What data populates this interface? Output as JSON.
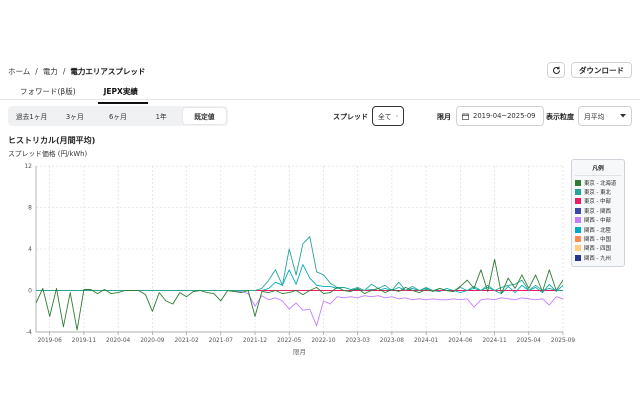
{
  "breadcrumb": {
    "items": [
      "ホーム",
      "電力"
    ],
    "current": "電力エリアスプレッド",
    "separator": "/"
  },
  "header": {
    "download_label": "ダウンロード",
    "refresh_icon": "refresh-icon"
  },
  "tabs": [
    {
      "label": "フォワード(β版)",
      "active": false
    },
    {
      "label": "JEPX実績",
      "active": true
    }
  ],
  "period": {
    "options": [
      "過去1ヶ月",
      "3ヶ月",
      "6ヶ月",
      "1年",
      "既定値"
    ],
    "selected": "既定値"
  },
  "filters": {
    "spread_label": "スプレッド",
    "spread_value": "全て",
    "month_label": "限月",
    "month_range": "2019-04~2025-09",
    "granularity_label": "表示粒度",
    "granularity_value": "月平均"
  },
  "chart": {
    "title": "ヒストリカル(月間平均)",
    "subtitle": "スプレッド価格 (円/kWh)",
    "xlabel": "限月",
    "legend_title": "凡例"
  },
  "chart_data": {
    "type": "line",
    "title": "ヒストリカル(月間平均)",
    "ylabel": "スプレッド価格 (円/kWh)",
    "xlabel": "限月",
    "ylim": [
      -4,
      12
    ],
    "yticks": [
      -4,
      0,
      4,
      8,
      12
    ],
    "x_range": [
      "2019-04",
      "2025-09"
    ],
    "xticks": [
      "2019-06",
      "2019-11",
      "2020-04",
      "2020-09",
      "2021-02",
      "2021-07",
      "2021-12",
      "2022-05",
      "2022-10",
      "2023-03",
      "2023-08",
      "2024-01",
      "2024-06",
      "2024-11",
      "2025-04",
      "2025-09"
    ],
    "grid": true,
    "legend_position": "right",
    "x": [
      "2019-04",
      "2019-05",
      "2019-06",
      "2019-07",
      "2019-08",
      "2019-09",
      "2019-10",
      "2019-11",
      "2019-12",
      "2020-01",
      "2020-02",
      "2020-03",
      "2020-04",
      "2020-05",
      "2020-06",
      "2020-07",
      "2020-08",
      "2020-09",
      "2020-10",
      "2020-11",
      "2020-12",
      "2021-01",
      "2021-02",
      "2021-03",
      "2021-04",
      "2021-05",
      "2021-06",
      "2021-07",
      "2021-08",
      "2021-09",
      "2021-10",
      "2021-11",
      "2021-12",
      "2022-01",
      "2022-02",
      "2022-03",
      "2022-04",
      "2022-05",
      "2022-06",
      "2022-07",
      "2022-08",
      "2022-09",
      "2022-10",
      "2022-11",
      "2022-12",
      "2023-01",
      "2023-02",
      "2023-03",
      "2023-04",
      "2023-05",
      "2023-06",
      "2023-07",
      "2023-08",
      "2023-09",
      "2023-10",
      "2023-11",
      "2023-12",
      "2024-01",
      "2024-02",
      "2024-03",
      "2024-04",
      "2024-05",
      "2024-06",
      "2024-07",
      "2024-08",
      "2024-09",
      "2024-10",
      "2024-11",
      "2024-12",
      "2025-01",
      "2025-02",
      "2025-03",
      "2025-04",
      "2025-05",
      "2025-06",
      "2025-07",
      "2025-08",
      "2025-09"
    ],
    "series": [
      {
        "name": "東京 - 北海道",
        "color": "#2e7d32",
        "values": [
          -1.2,
          0.2,
          -2.5,
          0.2,
          -3.5,
          -0.2,
          -3.8,
          0.1,
          0.1,
          -0.3,
          0.1,
          -0.3,
          -0.2,
          0,
          0,
          0,
          -0.4,
          -2.0,
          -0.2,
          -1.0,
          -1.3,
          -0.2,
          -0.6,
          -0.1,
          0,
          -0.2,
          -0.3,
          -1.0,
          0,
          -0.1,
          -0.2,
          0,
          -2.5,
          -0.1,
          -0.2,
          0,
          -0.3,
          -0.2,
          0,
          -0.4,
          0,
          0.3,
          -0.3,
          -0.2,
          0.3,
          0,
          -0.1,
          0.2,
          -0.3,
          0,
          0.2,
          -0.2,
          0.1,
          -0.1,
          0.3,
          0,
          -0.2,
          0.1,
          -0.1,
          0.2,
          0,
          -0.1,
          0.4,
          1.0,
          0.2,
          2.0,
          -0.1,
          3.0,
          -0.3,
          1.2,
          0.2,
          1.5,
          0.2,
          1.5,
          -0.1,
          2.0,
          0,
          1.0
        ]
      },
      {
        "name": "東京 - 東北",
        "color": "#26a69a",
        "values": [
          0,
          0,
          0,
          0,
          0,
          0,
          0,
          0,
          0,
          0,
          0,
          0,
          0,
          0,
          0,
          0,
          0,
          0,
          0,
          0,
          0,
          0,
          0,
          0,
          0,
          0,
          0,
          0,
          0,
          0,
          0,
          0,
          0,
          0.2,
          1.0,
          2.0,
          0.5,
          4.0,
          1.5,
          4.5,
          5.2,
          1.8,
          1.5,
          0.7,
          0.3,
          0.3,
          0.1,
          0.3,
          0,
          0.6,
          0.2,
          0.5,
          0,
          0.8,
          0,
          0.4,
          0,
          0.3,
          0,
          0.2,
          0,
          -0.1,
          0.3,
          0,
          0.4,
          0,
          0.5,
          0,
          0.3,
          0.5,
          0.6,
          1.0,
          0,
          0.5,
          0,
          0.2,
          0,
          0
        ]
      },
      {
        "name": "東京 - 中部",
        "color": "#e91e63",
        "values": [
          0,
          0,
          0,
          0,
          0,
          0,
          0,
          0,
          0,
          0,
          0,
          0,
          0,
          0,
          0,
          0,
          0,
          0,
          0,
          0,
          0,
          0,
          0,
          0,
          0,
          0,
          0,
          0,
          0,
          0,
          0,
          0,
          0,
          0,
          0,
          0,
          0,
          0,
          0,
          0,
          0,
          0,
          0,
          0,
          0,
          0,
          0,
          0,
          0,
          0,
          0,
          0,
          0,
          0,
          0,
          0,
          0,
          0,
          0,
          0,
          0,
          0,
          0,
          0,
          0,
          0,
          0,
          0,
          0,
          0,
          0,
          0,
          0,
          0,
          0,
          0,
          0,
          0
        ]
      },
      {
        "name": "東京 - 関西",
        "color": "#3949ab",
        "values": [
          0,
          0,
          0,
          0,
          0,
          0,
          0,
          0,
          0,
          0,
          0,
          0,
          0,
          0,
          0,
          0,
          0,
          0,
          0,
          0,
          0,
          0,
          0,
          0,
          0,
          0,
          0,
          0,
          0,
          0,
          0,
          0,
          0,
          0,
          0,
          0,
          0,
          0,
          0,
          0,
          0,
          0,
          0,
          0,
          0,
          0,
          0,
          0,
          0,
          0,
          0,
          0,
          0,
          0,
          0,
          0,
          0,
          0,
          0,
          0,
          0,
          0,
          0,
          0,
          0,
          0,
          0,
          0,
          0,
          0,
          0,
          0,
          0,
          0,
          0,
          0,
          0,
          0
        ]
      },
      {
        "name": "関西 - 中部",
        "color": "#c77dff",
        "values": [
          0,
          0,
          0,
          0,
          0,
          0,
          0,
          0,
          0,
          0,
          0,
          0,
          0,
          0,
          0,
          0,
          0,
          0,
          0,
          0,
          0,
          0,
          0,
          0,
          0,
          0,
          0,
          0,
          0,
          0,
          -0.1,
          -0.3,
          -1.5,
          -0.5,
          -0.9,
          -0.7,
          -1.0,
          -1.8,
          -1.2,
          -1.9,
          -1.8,
          -3.4,
          -1.0,
          -1.3,
          -0.6,
          -0.7,
          -0.6,
          -0.7,
          -0.5,
          -0.6,
          -0.5,
          -0.7,
          -0.6,
          -0.8,
          -0.7,
          -0.9,
          -0.8,
          -0.9,
          -0.8,
          -0.9,
          -0.9,
          -0.8,
          -0.9,
          -0.8,
          -1.6,
          -0.9,
          -0.8,
          -0.9,
          -0.7,
          -0.8,
          -0.9,
          -0.7,
          -0.8,
          -0.9,
          -0.8,
          -1.4,
          -0.6,
          -0.8
        ]
      },
      {
        "name": "関西 - 北陸",
        "color": "#00acc1",
        "values": [
          0,
          0,
          0,
          0,
          0,
          0,
          0,
          0,
          0,
          0,
          0,
          0,
          0,
          0,
          0,
          0,
          0,
          0,
          0,
          0,
          0,
          0,
          0,
          0,
          0,
          0,
          0,
          0,
          0,
          0,
          0,
          0,
          0,
          0,
          0.2,
          0.8,
          0.5,
          2.0,
          0.6,
          2.5,
          1.2,
          0.5,
          0.4,
          0.4,
          0.2,
          0.3,
          0.1,
          0.1,
          0,
          0.1,
          0,
          0.2,
          0,
          0.3,
          0,
          0.2,
          0,
          0.2,
          0,
          -0.1,
          0.2,
          0,
          -0.2,
          0,
          0.2,
          0,
          0.3,
          0,
          -0.3,
          0.4,
          -0.2,
          0.5,
          0,
          0.3,
          -0.2,
          0.6,
          -0.1,
          0.5
        ]
      },
      {
        "name": "関西 - 中国",
        "color": "#ff8a50",
        "values": [
          0,
          0,
          0,
          0,
          0,
          0,
          0,
          0,
          0,
          0,
          0,
          0,
          0,
          0,
          0,
          0,
          0,
          0,
          0,
          0,
          0,
          0,
          0,
          0,
          0,
          0,
          0,
          0,
          0,
          0,
          0,
          0,
          0,
          0,
          0,
          0,
          0,
          0,
          0,
          0,
          0,
          0,
          0,
          0,
          0,
          0,
          0,
          0,
          0,
          0,
          0,
          0,
          0,
          0,
          0,
          0,
          0,
          0,
          0,
          0,
          0,
          0,
          0,
          0,
          0,
          0,
          0,
          0,
          0,
          0,
          0,
          0,
          0,
          0,
          0,
          0,
          0,
          0
        ]
      },
      {
        "name": "関西 - 四国",
        "color": "#ffcc80",
        "values": [
          0,
          0,
          0,
          0,
          0,
          0,
          0,
          0,
          0,
          0,
          0,
          0,
          0,
          0,
          0,
          0,
          0,
          0,
          0,
          0,
          0,
          0,
          0,
          0,
          0,
          0,
          0,
          0,
          0,
          0,
          0,
          0,
          0,
          0,
          0,
          0,
          0,
          0,
          0,
          0,
          0,
          0,
          0,
          0,
          0,
          0,
          0,
          0,
          0,
          0,
          0,
          0,
          0,
          0,
          0,
          0,
          0,
          0,
          0,
          0,
          0,
          0,
          0,
          0,
          0,
          0,
          0,
          0,
          0,
          0,
          0,
          0,
          0,
          0,
          0,
          0,
          0,
          0
        ]
      },
      {
        "name": "関西 - 九州",
        "color": "#283593",
        "values": [
          0,
          0,
          0,
          0,
          0,
          0,
          0,
          0,
          0,
          0,
          0,
          0,
          0,
          0,
          0,
          0,
          0,
          0,
          0,
          0,
          0,
          0,
          0,
          0,
          0,
          0,
          0,
          0,
          0,
          0,
          0,
          0,
          0,
          0,
          0,
          0,
          0,
          0,
          0,
          0,
          0,
          0,
          0,
          0,
          0,
          0,
          0,
          0,
          0,
          0,
          0,
          0,
          0,
          0,
          0,
          0,
          0,
          0,
          0,
          0,
          0,
          0,
          0,
          0,
          0,
          0,
          0,
          0,
          0,
          0,
          0,
          0,
          0,
          0,
          0,
          0,
          0,
          0
        ]
      }
    ]
  }
}
